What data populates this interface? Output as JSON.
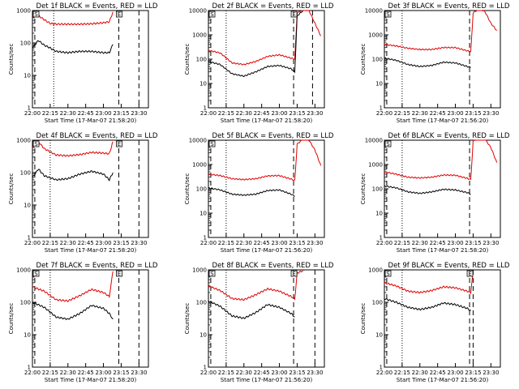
{
  "chart_data": [
    {
      "id": "det1f",
      "type": "line",
      "title": "Det 1f BLACK = Events, RED = LLD",
      "xlabel": "Start Time (17-Mar-07 21:58:20)",
      "ylabel": "Counts/sec",
      "yscale": "log",
      "ylim": [
        1,
        1000
      ],
      "xlim": [
        "22:00",
        "23:38"
      ],
      "x_ticks": [
        "22:00",
        "22:15",
        "22:30",
        "22:45",
        "23:00",
        "23:15",
        "23:30"
      ],
      "y_ticks": [
        "1",
        "10",
        "100",
        "1000"
      ],
      "markers": {
        "dotted": [
          "22:18"
        ],
        "dashed": [
          "22:02",
          "23:13",
          "23:30"
        ],
        "box_labels": [
          "S",
          "E"
        ]
      },
      "series": [
        {
          "color": "red",
          "x": [
            "22:00",
            "22:05",
            "22:10",
            "22:15",
            "22:20",
            "22:30",
            "22:40",
            "22:50",
            "23:00",
            "23:05",
            "23:08"
          ],
          "y": [
            650,
            700,
            520,
            400,
            380,
            380,
            380,
            390,
            420,
            450,
            900
          ]
        },
        {
          "color": "black",
          "x": [
            "22:00",
            "22:05",
            "22:10",
            "22:15",
            "22:20",
            "22:30",
            "22:40",
            "22:50",
            "23:00",
            "23:05",
            "23:08"
          ],
          "y": [
            70,
            120,
            85,
            70,
            55,
            50,
            55,
            55,
            50,
            50,
            90
          ]
        }
      ]
    },
    {
      "id": "det2f",
      "type": "line",
      "title": "Det 2f BLACK = Events, RED = LLD",
      "xlabel": "Start Time (17-Mar-07 21:58:20)",
      "ylabel": "Counts/sec",
      "yscale": "log",
      "ylim": [
        1,
        10000
      ],
      "xlim": [
        "22:00",
        "23:38"
      ],
      "x_ticks": [
        "22:00",
        "22:15",
        "22:30",
        "22:45",
        "23:00",
        "23:15",
        "23:30"
      ],
      "y_ticks": [
        "1",
        "10",
        "100",
        "1000",
        "10000"
      ],
      "markers": {
        "dotted": [
          "22:15"
        ],
        "dashed": [
          "22:02",
          "23:12",
          "23:28"
        ],
        "box_labels": [
          "S",
          "E"
        ]
      },
      "series": [
        {
          "color": "red",
          "x": [
            "22:00",
            "22:10",
            "22:20",
            "22:30",
            "22:40",
            "22:50",
            "23:00",
            "23:10",
            "23:13",
            "23:15",
            "23:20",
            "23:25",
            "23:30",
            "23:35"
          ],
          "y": [
            230,
            180,
            70,
            60,
            80,
            130,
            150,
            110,
            100,
            8000,
            11000,
            10000,
            3000,
            900
          ]
        },
        {
          "color": "black",
          "x": [
            "22:00",
            "22:10",
            "22:20",
            "22:30",
            "22:40",
            "22:50",
            "23:00",
            "23:10",
            "23:13",
            "23:15",
            "23:20"
          ],
          "y": [
            80,
            60,
            25,
            20,
            30,
            50,
            55,
            40,
            30,
            6000,
            10000
          ]
        }
      ]
    },
    {
      "id": "det3f",
      "type": "line",
      "title": "Det 3f BLACK = Events, RED = LLD",
      "xlabel": "Start Time (17-Mar-07 21:56:20)",
      "ylabel": "Counts/sec",
      "yscale": "log",
      "ylim": [
        1,
        10000
      ],
      "xlim": [
        "22:00",
        "23:38"
      ],
      "x_ticks": [
        "22:00",
        "22:15",
        "22:30",
        "22:45",
        "23:00",
        "23:15",
        "23:30"
      ],
      "y_ticks": [
        "1",
        "10",
        "100",
        "1000",
        "10000"
      ],
      "markers": {
        "dotted": [
          "22:15"
        ],
        "dashed": [
          "22:02",
          "23:12"
        ],
        "box_labels": [
          "S"
        ]
      },
      "series": [
        {
          "color": "red",
          "x": [
            "22:00",
            "22:10",
            "22:20",
            "22:30",
            "22:40",
            "22:50",
            "23:00",
            "23:10",
            "23:13",
            "23:15",
            "23:20",
            "23:25",
            "23:30",
            "23:35"
          ],
          "y": [
            400,
            350,
            280,
            250,
            250,
            300,
            300,
            220,
            200,
            8000,
            12000,
            9000,
            3000,
            1500
          ]
        },
        {
          "color": "black",
          "x": [
            "22:00",
            "22:10",
            "22:20",
            "22:30",
            "22:40",
            "22:50",
            "23:00",
            "23:10",
            "23:13"
          ],
          "y": [
            110,
            90,
            60,
            50,
            55,
            75,
            70,
            50,
            45
          ]
        }
      ]
    },
    {
      "id": "det4f",
      "type": "line",
      "title": "Det 4f BLACK = Events, RED = LLD",
      "xlabel": "Start Time (17-Mar-07 21:58:20)",
      "ylabel": "Counts/sec",
      "yscale": "log",
      "ylim": [
        1,
        1000
      ],
      "xlim": [
        "22:00",
        "23:38"
      ],
      "x_ticks": [
        "22:00",
        "22:15",
        "22:30",
        "22:45",
        "23:00",
        "23:15",
        "23:30"
      ],
      "y_ticks": [
        "1",
        "10",
        "100",
        "1000"
      ],
      "markers": {
        "dotted": [
          "22:15"
        ],
        "dashed": [
          "22:02",
          "23:13",
          "23:30"
        ],
        "box_labels": [
          "S",
          "E"
        ]
      },
      "series": [
        {
          "color": "red",
          "x": [
            "22:00",
            "22:05",
            "22:10",
            "22:20",
            "22:30",
            "22:40",
            "22:50",
            "23:00",
            "23:05",
            "23:08"
          ],
          "y": [
            650,
            900,
            550,
            350,
            330,
            360,
            420,
            400,
            380,
            900
          ]
        },
        {
          "color": "black",
          "x": [
            "22:00",
            "22:05",
            "22:10",
            "22:20",
            "22:30",
            "22:40",
            "22:50",
            "23:00",
            "23:05",
            "23:08"
          ],
          "y": [
            70,
            130,
            80,
            60,
            65,
            90,
            110,
            90,
            60,
            100
          ]
        }
      ]
    },
    {
      "id": "det5f",
      "type": "line",
      "title": "Det 5f BLACK = Events, RED = LLD",
      "xlabel": "Start Time (17-Mar-07 21:56:20)",
      "ylabel": "Counts/sec",
      "yscale": "log",
      "ylim": [
        1,
        10000
      ],
      "xlim": [
        "22:00",
        "23:38"
      ],
      "x_ticks": [
        "22:00",
        "22:15",
        "22:30",
        "22:45",
        "23:00",
        "23:15",
        "23:30"
      ],
      "y_ticks": [
        "1",
        "10",
        "100",
        "1000",
        "10000"
      ],
      "markers": {
        "dotted": [
          "22:15"
        ],
        "dashed": [
          "22:02",
          "23:12"
        ],
        "box_labels": [
          "S"
        ]
      },
      "series": [
        {
          "color": "red",
          "x": [
            "22:00",
            "22:10",
            "22:20",
            "22:30",
            "22:40",
            "22:50",
            "23:00",
            "23:10",
            "23:13",
            "23:15",
            "23:20",
            "23:25",
            "23:30",
            "23:35"
          ],
          "y": [
            400,
            350,
            260,
            240,
            260,
            340,
            350,
            250,
            220,
            7000,
            11000,
            10000,
            4000,
            900
          ]
        },
        {
          "color": "black",
          "x": [
            "22:00",
            "22:10",
            "22:20",
            "22:30",
            "22:40",
            "22:50",
            "23:00",
            "23:10",
            "23:13"
          ],
          "y": [
            110,
            90,
            60,
            55,
            60,
            85,
            90,
            60,
            50
          ]
        }
      ]
    },
    {
      "id": "det6f",
      "type": "line",
      "title": "Det 6f BLACK = Events, RED = LLD",
      "xlabel": "Start Time (17-Mar-07 21:58:20)",
      "ylabel": "Counts/sec",
      "yscale": "log",
      "ylim": [
        1,
        10000
      ],
      "xlim": [
        "22:00",
        "23:38"
      ],
      "x_ticks": [
        "22:00",
        "22:15",
        "22:30",
        "22:45",
        "23:00",
        "23:15",
        "23:30"
      ],
      "y_ticks": [
        "1",
        "10",
        "100",
        "1000",
        "10000"
      ],
      "markers": {
        "dotted": [
          "22:15"
        ],
        "dashed": [
          "22:02",
          "23:12"
        ],
        "box_labels": [
          "S"
        ]
      },
      "series": [
        {
          "color": "red",
          "x": [
            "22:00",
            "22:10",
            "22:20",
            "22:30",
            "22:40",
            "22:50",
            "23:00",
            "23:10",
            "23:13",
            "23:15",
            "23:20",
            "23:25",
            "23:30",
            "23:35"
          ],
          "y": [
            500,
            400,
            300,
            280,
            300,
            370,
            360,
            270,
            240,
            9000,
            14000,
            11000,
            5000,
            1200
          ]
        },
        {
          "color": "black",
          "x": [
            "22:00",
            "22:10",
            "22:20",
            "22:30",
            "22:40",
            "22:50",
            "23:00",
            "23:10",
            "23:13"
          ],
          "y": [
            130,
            110,
            75,
            65,
            75,
            95,
            90,
            70,
            60
          ]
        }
      ]
    },
    {
      "id": "det7f",
      "type": "line",
      "title": "Det 7f BLACK = Events, RED = LLD",
      "xlabel": "Start Time (17-Mar-07 21:58:20)",
      "ylabel": "Counts/sec",
      "yscale": "log",
      "ylim": [
        1,
        1000
      ],
      "xlim": [
        "22:00",
        "23:38"
      ],
      "x_ticks": [
        "22:00",
        "22:15",
        "22:30",
        "22:45",
        "23:00",
        "23:15",
        "23:30"
      ],
      "y_ticks": [
        "1",
        "10",
        "100",
        "1000"
      ],
      "markers": {
        "dotted": [
          "22:15"
        ],
        "dashed": [
          "22:02",
          "23:13",
          "23:30"
        ],
        "box_labels": [
          "S",
          "E"
        ]
      },
      "series": [
        {
          "color": "red",
          "x": [
            "22:00",
            "22:10",
            "22:20",
            "22:30",
            "22:40",
            "22:50",
            "23:00",
            "23:05",
            "23:08"
          ],
          "y": [
            300,
            220,
            120,
            110,
            160,
            250,
            200,
            150,
            900
          ]
        },
        {
          "color": "black",
          "x": [
            "22:00",
            "22:10",
            "22:20",
            "22:30",
            "22:40",
            "22:50",
            "23:00",
            "23:05",
            "23:08"
          ],
          "y": [
            100,
            70,
            35,
            30,
            45,
            80,
            65,
            45,
            30
          ]
        }
      ]
    },
    {
      "id": "det8f",
      "type": "line",
      "title": "Det 8f BLACK = Events, RED = LLD",
      "xlabel": "Start Time (17-Mar-07 21:56:20)",
      "ylabel": "Counts/sec",
      "yscale": "log",
      "ylim": [
        1,
        1000
      ],
      "xlim": [
        "22:00",
        "23:38"
      ],
      "x_ticks": [
        "22:00",
        "22:15",
        "22:30",
        "22:45",
        "23:00",
        "23:15",
        "23:30"
      ],
      "y_ticks": [
        "1",
        "10",
        "100",
        "1000"
      ],
      "markers": {
        "dotted": [
          "22:15"
        ],
        "dashed": [
          "22:02",
          "23:12",
          "23:30"
        ],
        "box_labels": [
          "S",
          "E"
        ]
      },
      "series": [
        {
          "color": "red",
          "x": [
            "22:00",
            "22:10",
            "22:20",
            "22:30",
            "22:40",
            "22:50",
            "23:00",
            "23:10",
            "23:13",
            "23:15",
            "23:20"
          ],
          "y": [
            320,
            230,
            130,
            120,
            170,
            260,
            220,
            150,
            130,
            800,
            950
          ]
        },
        {
          "color": "black",
          "x": [
            "22:00",
            "22:10",
            "22:20",
            "22:30",
            "22:40",
            "22:50",
            "23:00",
            "23:10",
            "23:13"
          ],
          "y": [
            110,
            75,
            38,
            32,
            48,
            85,
            70,
            45,
            35
          ]
        }
      ]
    },
    {
      "id": "det9f",
      "type": "line",
      "title": "Det 9f BLACK = Events, RED = LLD",
      "xlabel": "Start Time (17-Mar-07 21:56:20)",
      "ylabel": "Counts/sec",
      "yscale": "log",
      "ylim": [
        1,
        1000
      ],
      "xlim": [
        "22:00",
        "23:38"
      ],
      "x_ticks": [
        "22:00",
        "22:15",
        "22:30",
        "22:45",
        "23:00",
        "23:15",
        "23:30"
      ],
      "y_ticks": [
        "1",
        "10",
        "100",
        "1000"
      ],
      "markers": {
        "dotted": [
          "22:15"
        ],
        "dashed": [
          "22:02",
          "23:12",
          "23:15"
        ],
        "box_labels": [
          "S",
          "E"
        ]
      },
      "series": [
        {
          "color": "red",
          "x": [
            "22:00",
            "22:10",
            "22:20",
            "22:30",
            "22:40",
            "22:50",
            "23:00",
            "23:10",
            "23:13",
            "23:15"
          ],
          "y": [
            400,
            320,
            220,
            200,
            230,
            300,
            280,
            220,
            200,
            950
          ]
        },
        {
          "color": "black",
          "x": [
            "22:00",
            "22:10",
            "22:20",
            "22:30",
            "22:40",
            "22:50",
            "23:00",
            "23:10",
            "23:13"
          ],
          "y": [
            130,
            100,
            70,
            60,
            70,
            95,
            85,
            65,
            55
          ]
        }
      ]
    }
  ]
}
